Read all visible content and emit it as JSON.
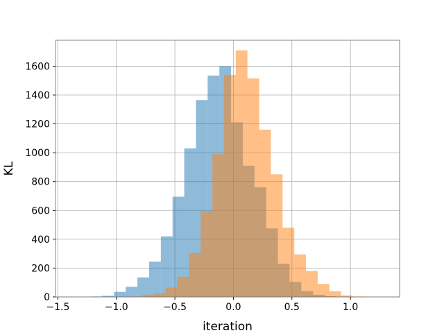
{
  "chart_data": {
    "type": "bar",
    "subtype": "overlapping-histogram",
    "title": "",
    "xlabel": "iteration",
    "ylabel": "KL",
    "xlim": [
      -1.52,
      1.42
    ],
    "ylim": [
      0,
      1780
    ],
    "x_ticks": [
      -1.5,
      -1.0,
      -0.5,
      0.0,
      0.5,
      1.0
    ],
    "x_tick_labels": [
      "−1.5",
      "−1.0",
      "−0.5",
      "0.0",
      "0.5",
      "1.0"
    ],
    "y_ticks": [
      0,
      200,
      400,
      600,
      800,
      1000,
      1200,
      1400,
      1600
    ],
    "y_tick_labels": [
      "0",
      "200",
      "400",
      "600",
      "800",
      "1000",
      "1200",
      "1400",
      "1600"
    ],
    "grid": true,
    "legend": false,
    "series": [
      {
        "color": "#1f77b4",
        "opacity": 0.5,
        "bin_edges": [
          -1.22,
          -1.12,
          -1.02,
          -0.92,
          -0.82,
          -0.72,
          -0.62,
          -0.52,
          -0.42,
          -0.32,
          -0.22,
          -0.12,
          -0.02,
          0.08,
          0.18,
          0.28,
          0.38,
          0.48,
          0.58,
          0.68,
          0.78,
          0.88,
          0.98,
          1.08,
          1.18,
          1.28,
          1.38
        ],
        "counts": [
          3,
          8,
          35,
          70,
          135,
          245,
          420,
          695,
          1030,
          1365,
          1535,
          1600,
          1210,
          910,
          760,
          475,
          230,
          105,
          40,
          15,
          5,
          2,
          1,
          1,
          1,
          1
        ]
      },
      {
        "color": "#ff7f0e",
        "opacity": 0.5,
        "bin_edges": [
          -0.88,
          -0.78,
          -0.68,
          -0.58,
          -0.48,
          -0.38,
          -0.28,
          -0.18,
          -0.08,
          0.02,
          0.12,
          0.22,
          0.32,
          0.42,
          0.52,
          0.62,
          0.72,
          0.82,
          0.92,
          1.02,
          1.12
        ],
        "counts": [
          3,
          15,
          25,
          65,
          140,
          305,
          595,
          990,
          1540,
          1710,
          1515,
          1160,
          850,
          480,
          295,
          180,
          90,
          40,
          10,
          3
        ]
      }
    ]
  }
}
